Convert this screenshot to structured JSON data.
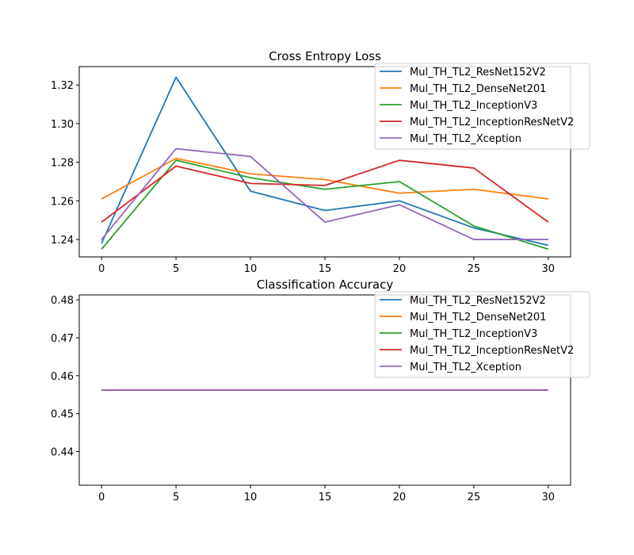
{
  "chart_data": [
    {
      "type": "line",
      "title": "Cross Entropy Loss",
      "xlabel": "",
      "ylabel": "",
      "x": [
        0,
        5,
        10,
        15,
        20,
        25,
        30
      ],
      "xticks": [
        "0",
        "5",
        "10",
        "15",
        "20",
        "25",
        "30"
      ],
      "yticks": [
        "1.24",
        "1.26",
        "1.28",
        "1.30",
        "1.32"
      ],
      "xlim": [
        -1.5,
        31.5
      ],
      "ylim": [
        1.231,
        1.3295
      ],
      "grid": false,
      "legend_position": "top-right",
      "series": [
        {
          "name": "Mul_TH_TL2_ResNet152V2",
          "color": "#1f77b4",
          "values": [
            1.238,
            1.324,
            1.265,
            1.255,
            1.26,
            1.246,
            1.237
          ]
        },
        {
          "name": "Mul_TH_TL2_DenseNet201",
          "color": "#ff7f0e",
          "values": [
            1.261,
            1.282,
            1.274,
            1.271,
            1.264,
            1.266,
            1.261
          ]
        },
        {
          "name": "Mul_TH_TL2_InceptionV3",
          "color": "#2ca02c",
          "values": [
            1.235,
            1.281,
            1.272,
            1.266,
            1.27,
            1.247,
            1.235
          ]
        },
        {
          "name": "Mul_TH_TL2_InceptionResNetV2",
          "color": "#d62728",
          "values": [
            1.249,
            1.278,
            1.269,
            1.268,
            1.281,
            1.277,
            1.249
          ]
        },
        {
          "name": "Mul_TH_TL2_Xception",
          "color": "#9467bd",
          "values": [
            1.24,
            1.287,
            1.283,
            1.249,
            1.258,
            1.24,
            1.24
          ]
        }
      ]
    },
    {
      "type": "line",
      "title": "Classification Accuracy",
      "xlabel": "",
      "ylabel": "",
      "x": [
        0,
        5,
        10,
        15,
        20,
        25,
        30
      ],
      "xticks": [
        "0",
        "5",
        "10",
        "15",
        "20",
        "25",
        "30"
      ],
      "yticks": [
        "0.44",
        "0.45",
        "0.46",
        "0.47",
        "0.48"
      ],
      "xlim": [
        -1.5,
        31.5
      ],
      "ylim": [
        0.4311,
        0.4813
      ],
      "grid": false,
      "legend_position": "top-right",
      "series": [
        {
          "name": "Mul_TH_TL2_ResNet152V2",
          "color": "#1f77b4",
          "values": [
            0.4562,
            0.4562,
            0.4562,
            0.4562,
            0.4562,
            0.4562,
            0.4562
          ]
        },
        {
          "name": "Mul_TH_TL2_DenseNet201",
          "color": "#ff7f0e",
          "values": [
            0.4562,
            0.4562,
            0.4562,
            0.4562,
            0.4562,
            0.4562,
            0.4562
          ]
        },
        {
          "name": "Mul_TH_TL2_InceptionV3",
          "color": "#2ca02c",
          "values": [
            0.4562,
            0.4562,
            0.4562,
            0.4562,
            0.4562,
            0.4562,
            0.4562
          ]
        },
        {
          "name": "Mul_TH_TL2_InceptionResNetV2",
          "color": "#d62728",
          "values": [
            0.4562,
            0.4562,
            0.4562,
            0.4562,
            0.4562,
            0.4562,
            0.4562
          ]
        },
        {
          "name": "Mul_TH_TL2_Xception",
          "color": "#9467bd",
          "values": [
            0.4562,
            0.4562,
            0.4562,
            0.4562,
            0.4562,
            0.4562,
            0.4562
          ]
        }
      ]
    }
  ]
}
